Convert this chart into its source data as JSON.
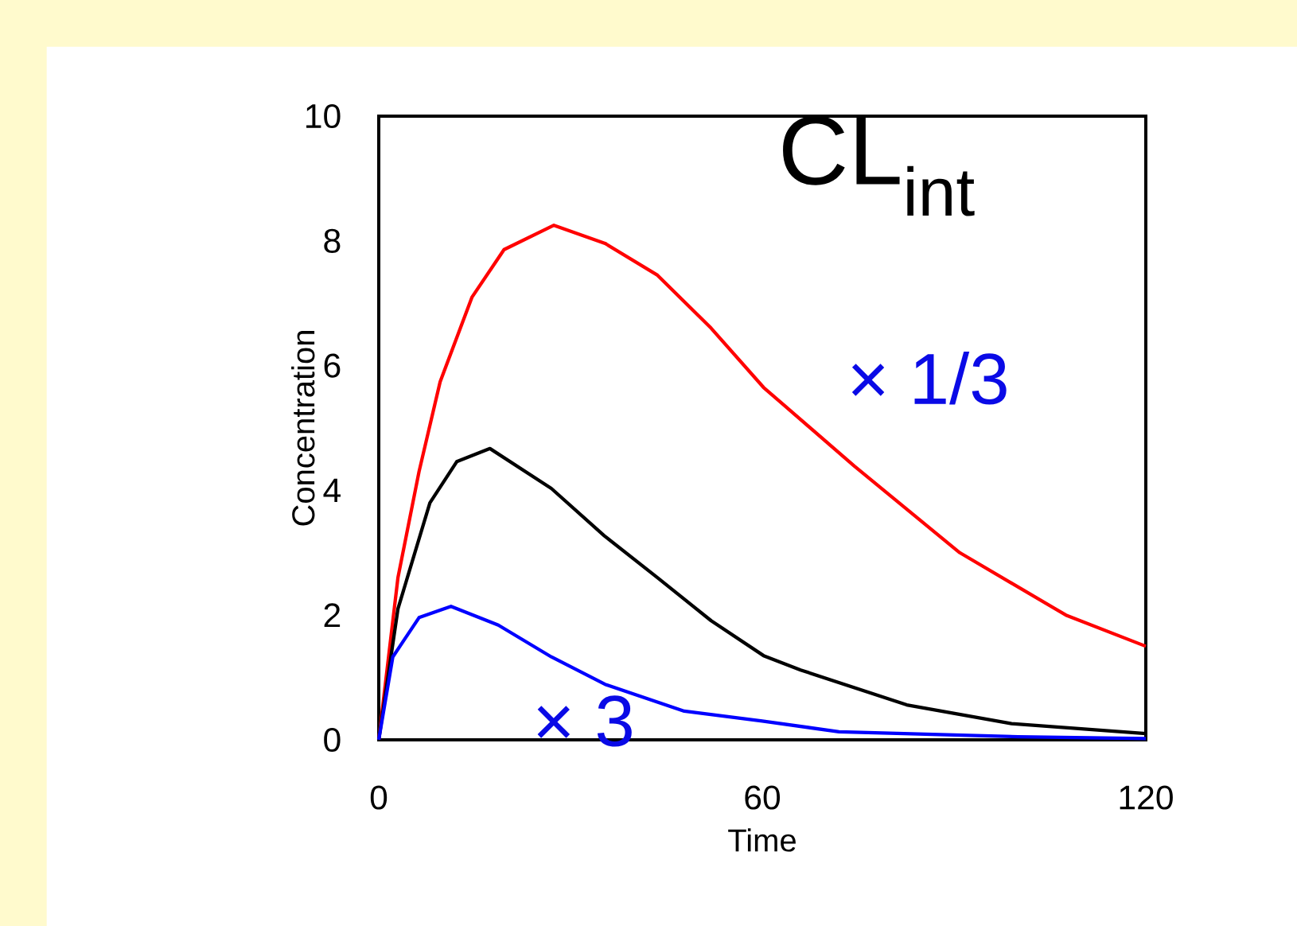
{
  "chart_data": {
    "type": "line",
    "xlabel": "Time",
    "ylabel": "Concentration",
    "annotations": [
      "CL$_{int}$",
      "× 1/3",
      "× 3"
    ],
    "xlim": [
      0,
      120
    ],
    "xticks": [
      0,
      60,
      120
    ],
    "ylim": [
      0,
      10
    ],
    "yticks": [
      0,
      2,
      4,
      6,
      8,
      10
    ],
    "grid": false,
    "line_style": "solid",
    "series": [
      {
        "color": "#ff0000",
        "x": [
          0,
          3,
          6.3,
          9.6,
          14.6,
          19.6,
          27.4,
          35.4,
          43.6,
          52,
          60.2,
          74.4,
          90.9,
          107.5,
          120
        ],
        "values": [
          0,
          2.6,
          4.3,
          5.74,
          7.1,
          7.86,
          8.25,
          7.96,
          7.45,
          6.6,
          5.65,
          4.39,
          3.0,
          2.0,
          1.5
        ]
      },
      {
        "color": "#000000",
        "x": [
          0,
          3,
          8,
          12.2,
          17.4,
          27,
          35.3,
          43.6,
          52,
          60.2,
          66,
          82.6,
          99,
          120
        ],
        "values": [
          0,
          2.1,
          3.8,
          4.46,
          4.67,
          4.03,
          3.27,
          2.6,
          1.91,
          1.35,
          1.12,
          0.56,
          0.26,
          0.1
        ]
      },
      {
        "color": "#0000ff",
        "x": [
          0,
          2.2,
          6.3,
          11.3,
          18.7,
          27,
          35.4,
          47.8,
          60,
          72,
          100,
          120
        ],
        "values": [
          0,
          1.33,
          1.96,
          2.14,
          1.84,
          1.33,
          0.89,
          0.46,
          0.3,
          0.13,
          0.05,
          0.02
        ]
      }
    ]
  }
}
